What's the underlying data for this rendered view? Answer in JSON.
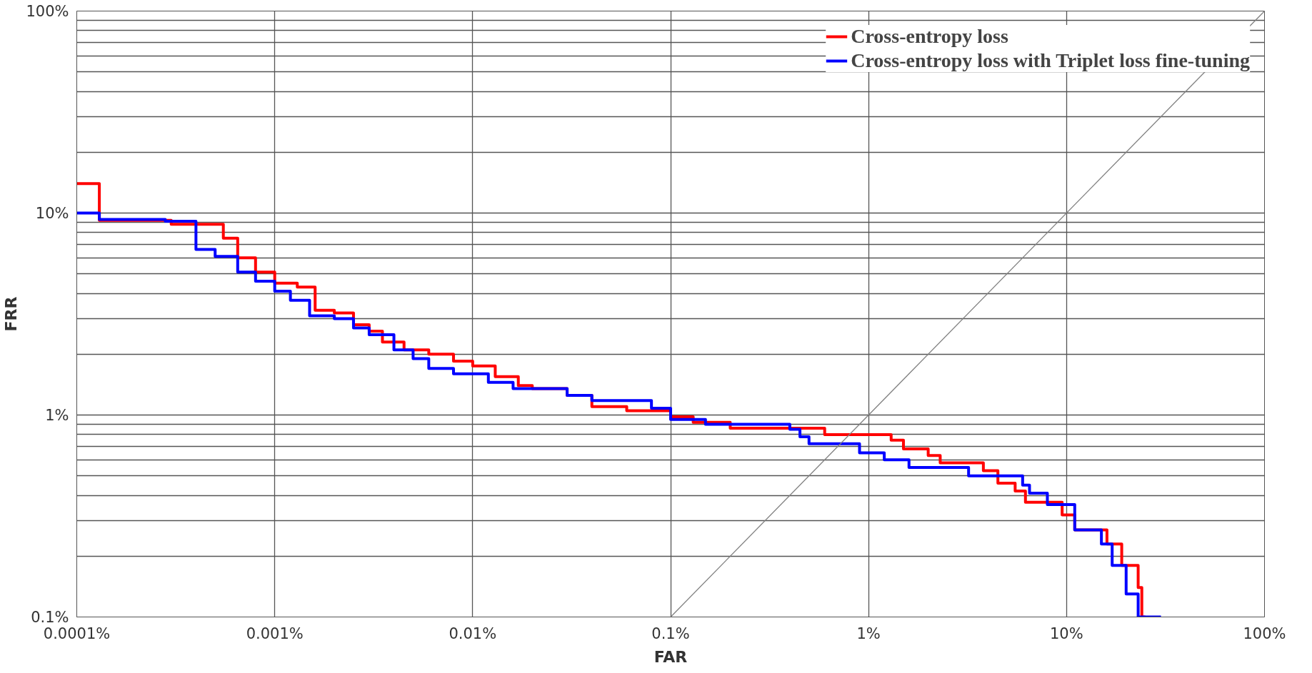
{
  "chart_data": {
    "type": "step",
    "xlabel": "FAR",
    "ylabel": "FRR",
    "log": "xy",
    "grid": true,
    "legend": "top right",
    "xlim": [
      0.0001,
      100
    ],
    "ylim": [
      0.1,
      100
    ],
    "xticks": [
      {
        "value": 0.0001,
        "label": "0.0001%"
      },
      {
        "value": 0.001,
        "label": "0.001%"
      },
      {
        "value": 0.01,
        "label": "0.01%"
      },
      {
        "value": 0.1,
        "label": "0.1%"
      },
      {
        "value": 1,
        "label": "1%"
      },
      {
        "value": 10,
        "label": "10%"
      },
      {
        "value": 100,
        "label": "100%"
      }
    ],
    "yticks": [
      {
        "value": 0.1,
        "label": "0.1%"
      },
      {
        "value": 0.2,
        "label": null
      },
      {
        "value": 0.3,
        "label": null
      },
      {
        "value": 0.4,
        "label": null
      },
      {
        "value": 0.5,
        "label": null
      },
      {
        "value": 0.6,
        "label": null
      },
      {
        "value": 0.7,
        "label": null
      },
      {
        "value": 0.8,
        "label": null
      },
      {
        "value": 0.9,
        "label": null
      },
      {
        "value": 1,
        "label": "1%"
      },
      {
        "value": 2,
        "label": null
      },
      {
        "value": 3,
        "label": null
      },
      {
        "value": 4,
        "label": null
      },
      {
        "value": 5,
        "label": null
      },
      {
        "value": 6,
        "label": null
      },
      {
        "value": 7,
        "label": null
      },
      {
        "value": 8,
        "label": null
      },
      {
        "value": 9,
        "label": null
      },
      {
        "value": 10,
        "label": "10%"
      },
      {
        "value": 20,
        "label": null
      },
      {
        "value": 30,
        "label": null
      },
      {
        "value": 40,
        "label": null
      },
      {
        "value": 50,
        "label": null
      },
      {
        "value": 60,
        "label": null
      },
      {
        "value": 70,
        "label": null
      },
      {
        "value": 80,
        "label": null
      },
      {
        "value": 90,
        "label": null
      },
      {
        "value": 100,
        "label": "100%"
      }
    ],
    "series": [
      {
        "name": "Cross-entropy loss",
        "color": "#ff0000",
        "x": [
          0.0001,
          0.00013,
          0.0003,
          0.00055,
          0.00065,
          0.0008,
          0.001,
          0.0013,
          0.0016,
          0.002,
          0.0025,
          0.003,
          0.0035,
          0.0045,
          0.006,
          0.008,
          0.01,
          0.013,
          0.017,
          0.02,
          0.03,
          0.04,
          0.06,
          0.1,
          0.13,
          0.2,
          0.4,
          0.6,
          1.3,
          1.5,
          2.0,
          2.3,
          3.8,
          4.5,
          5.5,
          6.2,
          9.5,
          11,
          16,
          19,
          23,
          24,
          25
        ],
        "values": [
          14,
          9.2,
          8.8,
          7.5,
          6.0,
          5.1,
          4.5,
          4.3,
          3.3,
          3.2,
          2.8,
          2.6,
          2.3,
          2.1,
          2.0,
          1.85,
          1.75,
          1.55,
          1.4,
          1.35,
          1.25,
          1.1,
          1.05,
          0.98,
          0.92,
          0.86,
          0.86,
          0.8,
          0.75,
          0.68,
          0.63,
          0.58,
          0.53,
          0.46,
          0.42,
          0.37,
          0.32,
          0.27,
          0.23,
          0.18,
          0.14,
          0.1,
          0.1
        ]
      },
      {
        "name": "Cross-entropy loss with Triplet loss fine-tuning",
        "color": "#0000ff",
        "x": [
          0.0001,
          0.00013,
          0.00028,
          0.0004,
          0.0005,
          0.00065,
          0.0008,
          0.001,
          0.0012,
          0.0015,
          0.002,
          0.0025,
          0.003,
          0.004,
          0.005,
          0.006,
          0.008,
          0.012,
          0.016,
          0.03,
          0.04,
          0.08,
          0.1,
          0.15,
          0.4,
          0.45,
          0.5,
          0.9,
          1.2,
          1.6,
          3.2,
          6.0,
          6.5,
          8.0,
          11,
          15,
          17,
          20,
          23,
          30
        ],
        "values": [
          10,
          9.3,
          9.1,
          6.6,
          6.1,
          5.1,
          4.6,
          4.1,
          3.7,
          3.1,
          3.0,
          2.7,
          2.5,
          2.1,
          1.9,
          1.7,
          1.6,
          1.45,
          1.35,
          1.25,
          1.18,
          1.08,
          0.95,
          0.9,
          0.85,
          0.78,
          0.72,
          0.65,
          0.6,
          0.55,
          0.5,
          0.45,
          0.41,
          0.36,
          0.27,
          0.23,
          0.18,
          0.13,
          0.1,
          0.1
        ]
      },
      {
        "type": "line",
        "color": "#808080",
        "x": [
          0.1,
          100
        ],
        "values": [
          0.1,
          100
        ]
      }
    ]
  }
}
